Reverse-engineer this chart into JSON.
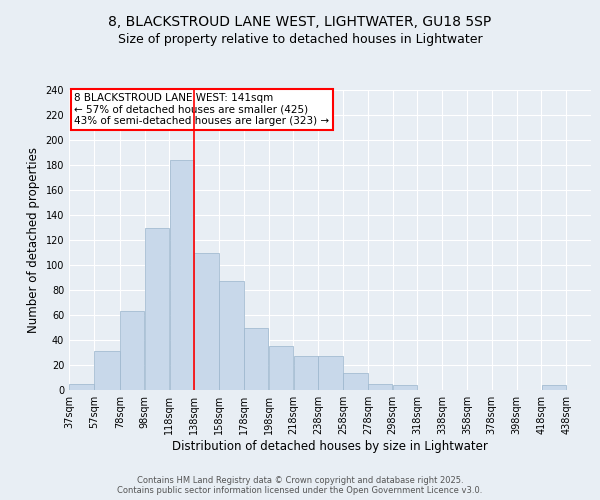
{
  "title_line1": "8, BLACKSTROUD LANE WEST, LIGHTWATER, GU18 5SP",
  "title_line2": "Size of property relative to detached houses in Lightwater",
  "xlabel": "Distribution of detached houses by size in Lightwater",
  "ylabel": "Number of detached properties",
  "bar_color": "#c8d8ea",
  "bar_edge_color": "#9ab5cc",
  "background_color": "#e8eef4",
  "plot_bg_color": "#e8eef4",
  "grid_color": "#ffffff",
  "vline_color": "red",
  "annotation_text": "8 BLACKSTROUD LANE WEST: 141sqm\n← 57% of detached houses are smaller (425)\n43% of semi-detached houses are larger (323) →",
  "annotation_box_color": "#ffffff",
  "annotation_box_edge": "red",
  "categories": [
    "37sqm",
    "57sqm",
    "78sqm",
    "98sqm",
    "118sqm",
    "138sqm",
    "158sqm",
    "178sqm",
    "198sqm",
    "218sqm",
    "238sqm",
    "258sqm",
    "278sqm",
    "298sqm",
    "318sqm",
    "338sqm",
    "358sqm",
    "378sqm",
    "398sqm",
    "418sqm",
    "438sqm"
  ],
  "bin_left_edges": [
    37,
    57,
    78,
    98,
    118,
    138,
    158,
    178,
    198,
    218,
    238,
    258,
    278,
    298,
    318,
    338,
    358,
    378,
    398,
    418,
    438
  ],
  "bin_widths": [
    20,
    21,
    20,
    20,
    20,
    20,
    20,
    20,
    20,
    20,
    20,
    20,
    20,
    20,
    20,
    20,
    20,
    20,
    20,
    20,
    20
  ],
  "values": [
    5,
    31,
    63,
    130,
    184,
    110,
    87,
    50,
    35,
    27,
    27,
    14,
    5,
    4,
    0,
    0,
    0,
    0,
    0,
    4,
    0
  ],
  "xlim_left": 37,
  "xlim_right": 458,
  "ylim": [
    0,
    240
  ],
  "yticks": [
    0,
    20,
    40,
    60,
    80,
    100,
    120,
    140,
    160,
    180,
    200,
    220,
    240
  ],
  "vline_x": 138,
  "footnote": "Contains HM Land Registry data © Crown copyright and database right 2025.\nContains public sector information licensed under the Open Government Licence v3.0.",
  "title_fontsize": 10,
  "subtitle_fontsize": 9,
  "tick_fontsize": 7,
  "label_fontsize": 8.5,
  "annotation_fontsize": 7.5
}
